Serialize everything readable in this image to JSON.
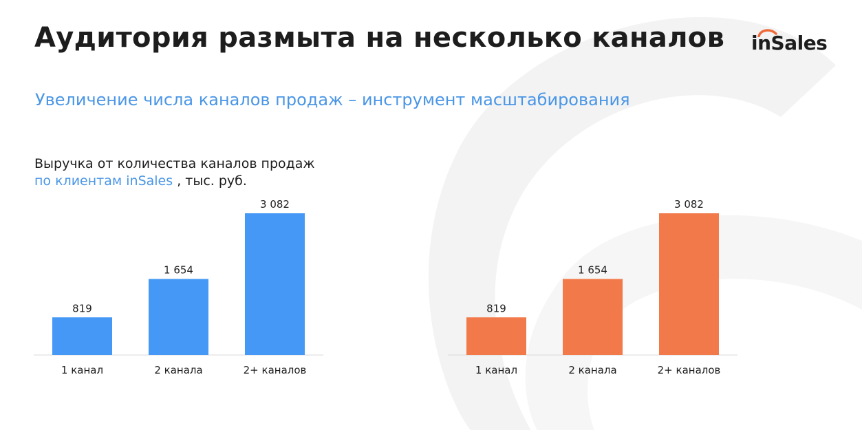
{
  "page": {
    "title": "Аудитория размыта на несколько каналов",
    "subtitle": "Увеличение числа каналов продаж – инструмент масштабирования",
    "logo_text": "inSales"
  },
  "caption": {
    "line1": "Выручка от количества каналов продаж",
    "line2_accent": "по клиентам inSales",
    "line2_rest": " , тыс. руб."
  },
  "colors": {
    "accent_blue": "#4a96e6",
    "bar_blue": "#4598f5",
    "bar_orange": "#f27a4a",
    "logo_orange": "#ef6a3a",
    "baseline": "#d9d9d9"
  },
  "chart_data": [
    {
      "type": "bar",
      "categories": [
        "1 канал",
        "2 канала",
        "2+ каналов"
      ],
      "values": [
        819,
        1654,
        3082
      ],
      "value_labels": [
        "819",
        "1 654",
        "3 082"
      ],
      "ylim": [
        0,
        3082
      ],
      "color": "#4598f5",
      "grid": false
    },
    {
      "type": "bar",
      "categories": [
        "1 канал",
        "2 канала",
        "2+ каналов"
      ],
      "values": [
        819,
        1654,
        3082
      ],
      "value_labels": [
        "819",
        "1 654",
        "3 082"
      ],
      "ylim": [
        0,
        3082
      ],
      "color": "#f27a4a",
      "grid": false
    }
  ]
}
